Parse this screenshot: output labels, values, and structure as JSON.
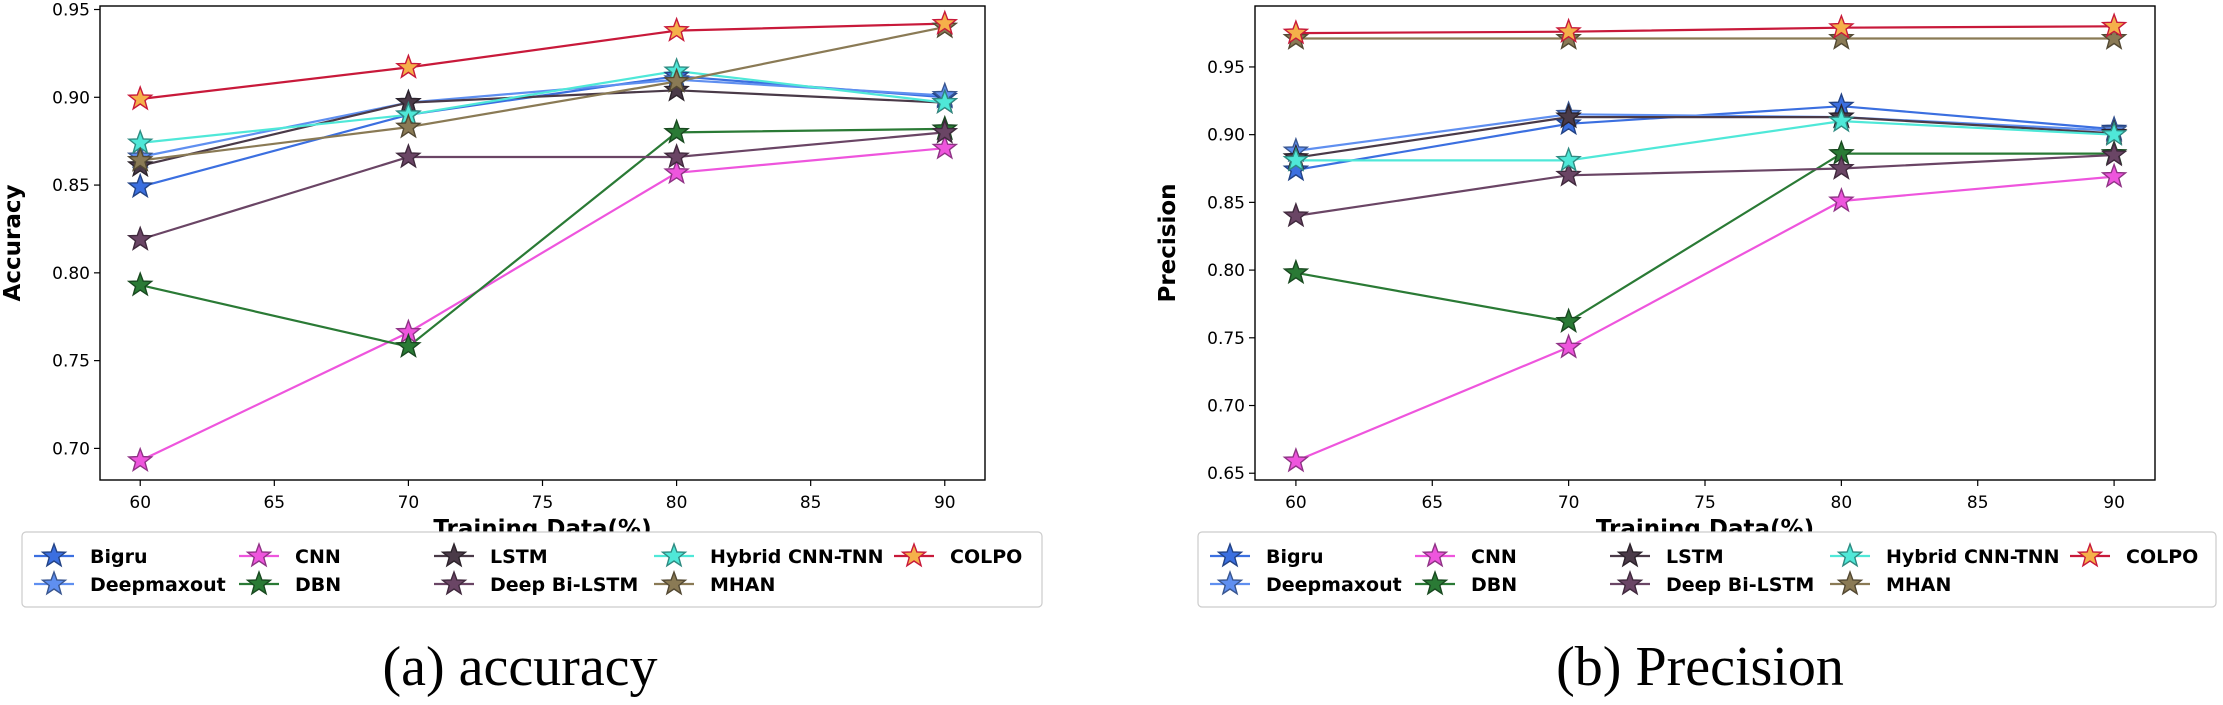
{
  "chart_data": [
    {
      "id": "accuracy",
      "type": "line",
      "caption": "(a) accuracy",
      "xlabel": "Training Data(%)",
      "ylabel": "Accuracy",
      "xlim": [
        58.5,
        91.5
      ],
      "ylim": [
        0.682,
        0.952
      ],
      "x_ticks": [
        "60",
        "65",
        "70",
        "75",
        "80",
        "85",
        "90"
      ],
      "y_ticks": [
        "0.70",
        "0.75",
        "0.80",
        "0.85",
        "0.90",
        "0.95"
      ],
      "x": [
        60,
        70,
        80,
        90
      ],
      "series": [
        {
          "name": "Bigru",
          "color": "#3b6fe0",
          "values": [
            0.849,
            0.89,
            0.912,
            0.9
          ]
        },
        {
          "name": "Deepmaxout",
          "color": "#5f8ff0",
          "values": [
            0.866,
            0.897,
            0.91,
            0.901
          ]
        },
        {
          "name": "CNN",
          "color": "#ee55dd",
          "values": [
            0.693,
            0.766,
            0.857,
            0.871
          ]
        },
        {
          "name": "DBN",
          "color": "#2a7a35",
          "values": [
            0.793,
            0.758,
            0.88,
            0.882
          ]
        },
        {
          "name": "LSTM",
          "color": "#4a3a48",
          "values": [
            0.861,
            0.897,
            0.904,
            0.897
          ]
        },
        {
          "name": "Deep Bi-LSTM",
          "color": "#6a4565",
          "values": [
            0.819,
            0.866,
            0.866,
            0.88
          ]
        },
        {
          "name": "Hybrid CNN-TNN",
          "color": "#4fe8d8",
          "values": [
            0.874,
            0.89,
            0.915,
            0.897
          ]
        },
        {
          "name": "MHAN",
          "color": "#8a7a55",
          "values": [
            0.864,
            0.883,
            0.909,
            0.94
          ]
        },
        {
          "name": "COLPO",
          "color": "#c8193a",
          "values": [
            0.899,
            0.917,
            0.938,
            0.942
          ]
        }
      ]
    },
    {
      "id": "precision",
      "type": "line",
      "caption": "(b) Precision",
      "xlabel": "Training Data(%)",
      "ylabel": "Precision",
      "xlim": [
        58.5,
        91.5
      ],
      "ylim": [
        0.645,
        0.995
      ],
      "x_ticks": [
        "60",
        "65",
        "70",
        "75",
        "80",
        "85",
        "90"
      ],
      "y_ticks": [
        "0.65",
        "0.70",
        "0.75",
        "0.80",
        "0.85",
        "0.90",
        "0.95"
      ],
      "x": [
        60,
        70,
        80,
        90
      ],
      "series": [
        {
          "name": "Bigru",
          "color": "#3b6fe0",
          "values": [
            0.874,
            0.908,
            0.921,
            0.904
          ]
        },
        {
          "name": "Deepmaxout",
          "color": "#5f8ff0",
          "values": [
            0.888,
            0.915,
            0.913,
            0.903
          ]
        },
        {
          "name": "CNN",
          "color": "#ee55dd",
          "values": [
            0.659,
            0.743,
            0.851,
            0.869
          ]
        },
        {
          "name": "DBN",
          "color": "#2a7a35",
          "values": [
            0.798,
            0.762,
            0.886,
            0.886
          ]
        },
        {
          "name": "LSTM",
          "color": "#4a3a48",
          "values": [
            0.883,
            0.913,
            0.913,
            0.901
          ]
        },
        {
          "name": "Deep Bi-LSTM",
          "color": "#6a4565",
          "values": [
            0.84,
            0.87,
            0.875,
            0.885
          ]
        },
        {
          "name": "Hybrid CNN-TNN",
          "color": "#4fe8d8",
          "values": [
            0.881,
            0.881,
            0.91,
            0.9
          ]
        },
        {
          "name": "MHAN",
          "color": "#8a7a55",
          "values": [
            0.971,
            0.971,
            0.971,
            0.971
          ]
        },
        {
          "name": "COLPO",
          "color": "#c8193a",
          "values": [
            0.975,
            0.976,
            0.979,
            0.98
          ]
        }
      ]
    }
  ]
}
